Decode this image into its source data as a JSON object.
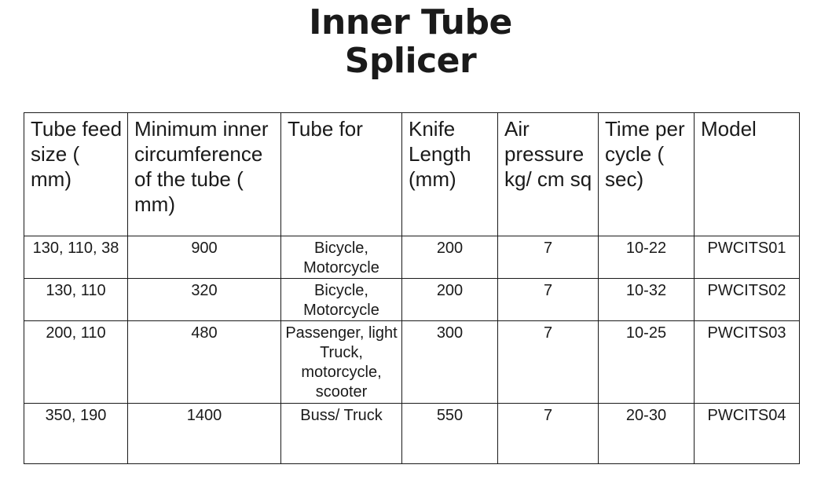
{
  "title": {
    "line1": "Inner Tube",
    "line2": "Splicer"
  },
  "table": {
    "headers": [
      "Tube feed size ( mm)",
      "Minimum inner circumference of the tube ( mm)",
      "Tube for",
      "Knife Length (mm)",
      "Air pressure kg/ cm sq",
      "Time per cycle ( sec)",
      "Model"
    ],
    "rows": [
      [
        "130, 110, 38",
        "900",
        "Bicycle, Motorcycle",
        "200",
        "7",
        "10-22",
        "PWCITS01"
      ],
      [
        "130, 110",
        "320",
        "Bicycle, Motorcycle",
        "200",
        "7",
        "10-32",
        "PWCITS02"
      ],
      [
        "200, 110",
        "480",
        "Passenger, light Truck, motorcycle, scooter",
        "300",
        "7",
        "10-25",
        "PWCITS03"
      ],
      [
        "350, 190",
        "1400",
        "Buss/ Truck",
        "550",
        "7",
        "20-30",
        "PWCITS04"
      ]
    ]
  }
}
